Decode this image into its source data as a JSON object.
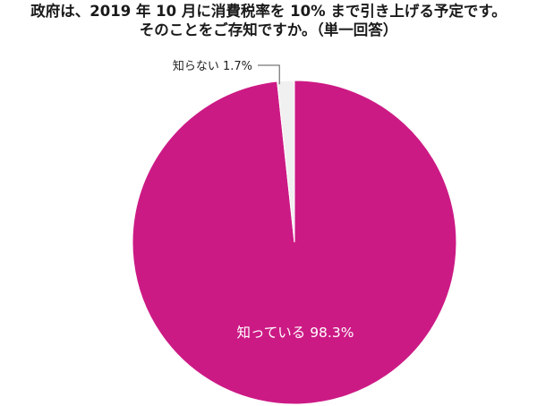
{
  "title_lines": [
    "政府は、2019 年 10 月に消費税率を 10% まで引き上げる予定です。",
    "そのことをご存知ですか。（単一回答）"
  ],
  "colors": {
    "known": "#cc1a85",
    "unknown": "#f0f0f0",
    "leader": "#555555"
  },
  "chart_data": {
    "type": "pie",
    "title": "政府は、2019 年 10 月に消費税率を 10% まで引き上げる予定です。そのことをご存知ですか。（単一回答）",
    "slices": [
      {
        "label": "知っている",
        "value": 98.3,
        "display": "知っている 98.3%"
      },
      {
        "label": "知らない",
        "value": 1.7,
        "display": "知らない 1.7%"
      }
    ]
  }
}
